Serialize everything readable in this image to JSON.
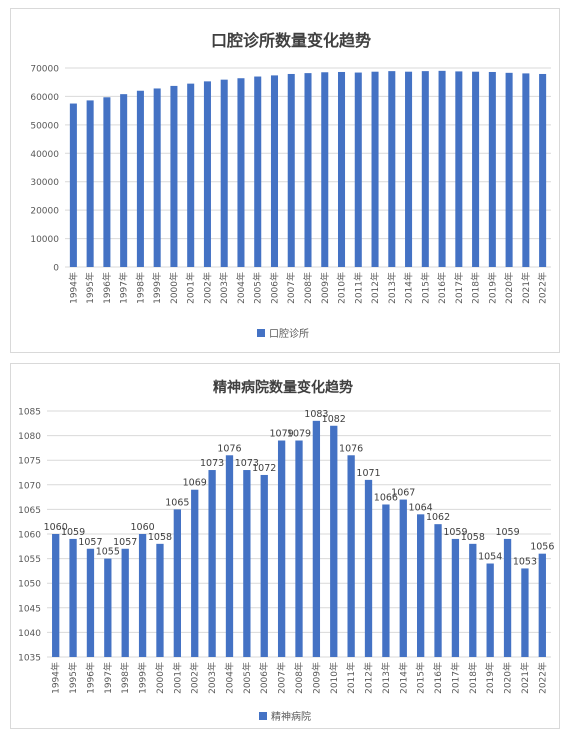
{
  "chart_data": [
    {
      "type": "bar",
      "title": "口腔诊所数量变化趋势",
      "categories": [
        "1994年",
        "1995年",
        "1996年",
        "1997年",
        "1998年",
        "1999年",
        "2000年",
        "2001年",
        "2002年",
        "2003年",
        "2004年",
        "2005年",
        "2006年",
        "2007年",
        "2008年",
        "2009年",
        "2010年",
        "2011年",
        "2012年",
        "2013年",
        "2014年",
        "2015年",
        "2016年",
        "2017年",
        "2018年",
        "2019年",
        "2020年",
        "2021年",
        "2022年"
      ],
      "series": [
        {
          "name": "口腔诊所",
          "values": [
            57500,
            58600,
            59700,
            60800,
            62000,
            62800,
            63700,
            64500,
            65300,
            65900,
            66400,
            67000,
            67400,
            67900,
            68200,
            68500,
            68600,
            68400,
            68700,
            68900,
            68700,
            68900,
            69000,
            68800,
            68700,
            68600,
            68300,
            68100,
            67900
          ]
        }
      ],
      "yticks": [
        "0",
        "10000",
        "20000",
        "30000",
        "40000",
        "50000",
        "60000",
        "70000"
      ],
      "ylim": [
        0,
        70000
      ],
      "grid": true,
      "legend": "bottom",
      "color": "#4472c4"
    },
    {
      "type": "bar",
      "title": "精神病院数量变化趋势",
      "categories": [
        "1994年",
        "1995年",
        "1996年",
        "1997年",
        "1998年",
        "1999年",
        "2000年",
        "2001年",
        "2002年",
        "2003年",
        "2004年",
        "2005年",
        "2006年",
        "2007年",
        "2008年",
        "2009年",
        "2010年",
        "2011年",
        "2012年",
        "2013年",
        "2014年",
        "2015年",
        "2016年",
        "2017年",
        "2018年",
        "2019年",
        "2020年",
        "2021年",
        "2022年"
      ],
      "series": [
        {
          "name": "精神病院",
          "values": [
            1060,
            1059,
            1057,
            1055,
            1057,
            1060,
            1058,
            1065,
            1069,
            1073,
            1076,
            1073,
            1072,
            1079,
            1079,
            1083,
            1082,
            1076,
            1071,
            1066,
            1067,
            1064,
            1062,
            1059,
            1058,
            1054,
            1059,
            1053,
            1056
          ],
          "labels": [
            "1060",
            "1059",
            "1057",
            "1055",
            "1057",
            "1060",
            "1058",
            "1065",
            "1069",
            "1073",
            "1076",
            "1073",
            "1072",
            "1079",
            "1079",
            "1083",
            "1082",
            "1076",
            "1071",
            "1066",
            "1067",
            "1064",
            "1062",
            "1059",
            "1058",
            "1054",
            "1059",
            "1053",
            "1056"
          ]
        }
      ],
      "yticks": [
        "1035",
        "1040",
        "1045",
        "1050",
        "1055",
        "1060",
        "1065",
        "1070",
        "1075",
        "1080",
        "1085"
      ],
      "ylim": [
        1035,
        1085
      ],
      "grid": true,
      "legend": "bottom",
      "color": "#4472c4"
    }
  ]
}
